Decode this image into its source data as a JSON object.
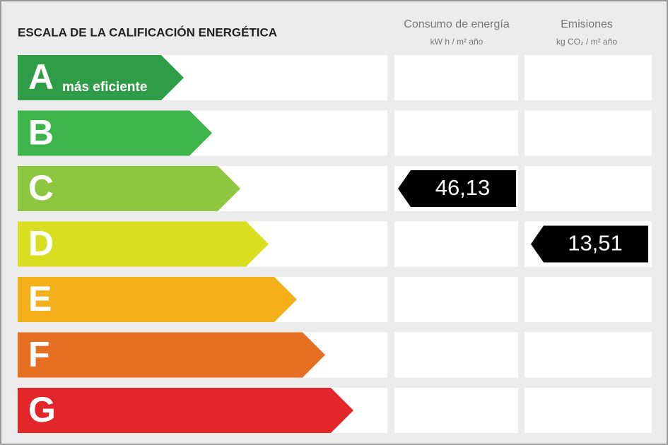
{
  "header": {
    "title": "ESCALA DE LA CALIFICACIÓN ENERGÉTICA",
    "columns": [
      {
        "title": "Consumo de energía",
        "unit": "kW h / m² año"
      },
      {
        "title": "Emisiones",
        "unit": "kg CO₂ / m² año"
      }
    ]
  },
  "rows": [
    {
      "letter": "A",
      "note": "más eficiente",
      "color": "#2f9d47"
    },
    {
      "letter": "B",
      "color": "#3db54a"
    },
    {
      "letter": "C",
      "color": "#8dc63f",
      "consumo": "46,13"
    },
    {
      "letter": "D",
      "color": "#d8df20",
      "emisiones": "13,51"
    },
    {
      "letter": "E",
      "color": "#f3b01b"
    },
    {
      "letter": "F",
      "color": "#e66e20"
    },
    {
      "letter": "G",
      "color": "#e2262a"
    }
  ]
}
